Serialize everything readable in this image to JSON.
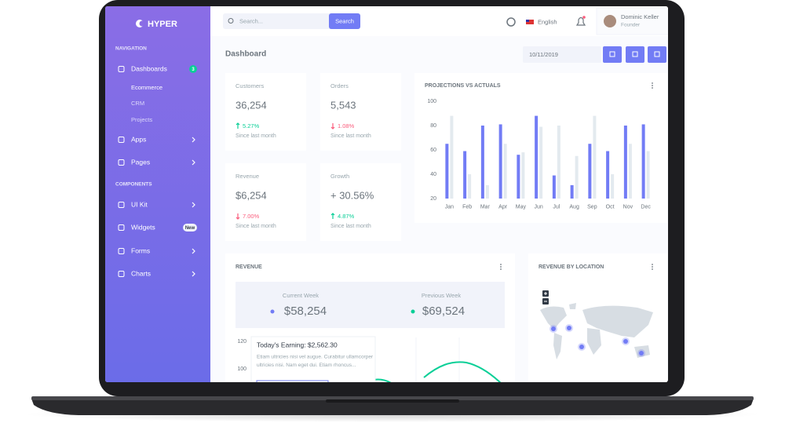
{
  "sidebar": {
    "brand": "HYPER",
    "sections": [
      {
        "title": "NAVIGATION",
        "items": [
          {
            "label": "Dashboards",
            "badge": "3"
          },
          {
            "label": "Ecommerce"
          },
          {
            "label": "CRM"
          },
          {
            "label": "Projects"
          },
          {
            "label": "Apps"
          },
          {
            "label": "Pages"
          }
        ]
      },
      {
        "title": "COMPONENTS",
        "items": [
          {
            "label": "UI Kit"
          },
          {
            "label": "Widgets",
            "badge": "New"
          },
          {
            "label": "Forms"
          },
          {
            "label": "Charts"
          }
        ]
      }
    ]
  },
  "topbar": {
    "search_placeholder": "Search...",
    "search_button": "Search",
    "language": "English",
    "user_name": "Dominic Keller",
    "user_role": "Founder"
  },
  "page": {
    "title": "Dashboard",
    "date": "10/11/2019"
  },
  "stats": [
    {
      "label": "Customers",
      "value": "36,254",
      "change": "5.27%",
      "note": "Since last month"
    },
    {
      "label": "Orders",
      "value": "5,543",
      "change": "1.08%",
      "note": "Since last month"
    },
    {
      "label": "Revenue",
      "value": "$6,254",
      "change": "7.00%",
      "note": "Since last month"
    },
    {
      "label": "Growth",
      "value": "+ 30.56%",
      "change": "4.87%",
      "note": "Since last month"
    }
  ],
  "chart_data": {
    "type": "bar",
    "title": "PROJECTIONS VS ACTUALS",
    "categories": [
      "Jan",
      "Feb",
      "Mar",
      "Apr",
      "May",
      "Jun",
      "Jul",
      "Aug",
      "Sep",
      "Oct",
      "Nov",
      "Dec"
    ],
    "series": [
      {
        "color": "#727cf5",
        "values": [
          65,
          59,
          80,
          81,
          56,
          88,
          39,
          31,
          65,
          59,
          80,
          81
        ]
      },
      {
        "color": "#e3eaef",
        "values": [
          88,
          40,
          31,
          65,
          58,
          79,
          80,
          55,
          88,
          40,
          65,
          59
        ]
      }
    ],
    "ylim": [
      20,
      100
    ],
    "yticks": [
      20,
      40,
      60,
      80,
      100
    ]
  },
  "revenue": {
    "title": "REVENUE",
    "current_label": "Current Week",
    "current_value": "$58,254",
    "previous_label": "Previous Week",
    "previous_value": "$69,524",
    "yticks": [
      120,
      100
    ],
    "earning_title": "Today's Earning: $2,562.30",
    "earning_lines": [
      "Etiam ultricies nisi vel augue. Curabitur ullamcorper",
      "ultricies nisi. Nam eget dui. Etiam rhoncus..."
    ]
  },
  "location": {
    "title": "REVENUE BY LOCATION"
  }
}
